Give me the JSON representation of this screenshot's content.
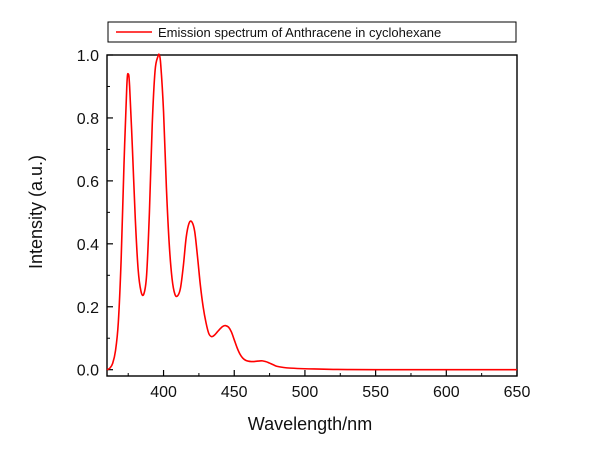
{
  "chart_data": {
    "type": "line",
    "title": "",
    "xlabel": "Wavelength/nm",
    "ylabel": "Intensity (a.u.)",
    "xlim": [
      360,
      650
    ],
    "ylim": [
      -0.02,
      1.0
    ],
    "xticks": [
      400,
      450,
      500,
      550,
      600,
      650
    ],
    "xtick_labels": [
      "400",
      "450",
      "500",
      "550",
      "600",
      "650"
    ],
    "yticks": [
      0.0,
      0.2,
      0.4,
      0.6,
      0.8,
      1.0
    ],
    "ytick_labels": [
      "0.0",
      "0.2",
      "0.4",
      "0.6",
      "0.8",
      "1.0"
    ],
    "grid": false,
    "legend_position": "top",
    "series": [
      {
        "name": "Emission spectrum of Anthracene in cyclohexane",
        "color": "#ff0000",
        "x": [
          360,
          362,
          364,
          366,
          368,
          370,
          372,
          374,
          375,
          376,
          378,
          380,
          382,
          384,
          386,
          388,
          390,
          392,
          394,
          396,
          397,
          398,
          400,
          402,
          404,
          406,
          408,
          410,
          412,
          414,
          416,
          418,
          420,
          422,
          424,
          426,
          428,
          430,
          432,
          434,
          436,
          438,
          440,
          442,
          444,
          446,
          448,
          450,
          452,
          454,
          456,
          458,
          460,
          462,
          464,
          466,
          468,
          470,
          472,
          474,
          476,
          478,
          480,
          485,
          490,
          500,
          510,
          520,
          530,
          550,
          600,
          650
        ],
        "y": [
          0.0,
          0.005,
          0.02,
          0.06,
          0.15,
          0.35,
          0.65,
          0.9,
          0.94,
          0.9,
          0.7,
          0.48,
          0.32,
          0.25,
          0.24,
          0.3,
          0.5,
          0.78,
          0.95,
          0.995,
          1.0,
          0.97,
          0.82,
          0.58,
          0.4,
          0.29,
          0.24,
          0.235,
          0.26,
          0.33,
          0.42,
          0.465,
          0.47,
          0.44,
          0.36,
          0.27,
          0.2,
          0.15,
          0.115,
          0.105,
          0.11,
          0.12,
          0.13,
          0.138,
          0.14,
          0.135,
          0.12,
          0.095,
          0.07,
          0.05,
          0.037,
          0.03,
          0.027,
          0.026,
          0.026,
          0.027,
          0.028,
          0.028,
          0.026,
          0.023,
          0.019,
          0.015,
          0.011,
          0.007,
          0.005,
          0.003,
          0.002,
          0.001,
          0.0005,
          0.0,
          0.0,
          0.0
        ]
      }
    ]
  }
}
